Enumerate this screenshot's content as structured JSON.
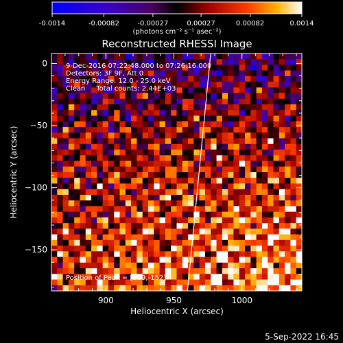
{
  "colorbar": {
    "tick_labels": [
      "-0.0014",
      "-0.00082",
      "-0.00027",
      "0.00027",
      "0.00082",
      "0.0014"
    ],
    "tick_values": [
      -0.0014,
      -0.00082,
      -0.00027,
      0.00027,
      0.00082,
      0.0014
    ],
    "min": -0.0014,
    "max": 0.0014,
    "unit_label": "(photons cm⁻² s⁻¹ asec⁻²)"
  },
  "chart_data": {
    "type": "heatmap",
    "title": "Reconstructed RHESSI Image",
    "xlabel": "Heliocentric X (arcsec)",
    "ylabel": "Heliocentric Y (arcsec)",
    "xlim": [
      860,
      1044
    ],
    "ylim": [
      -183,
      8
    ],
    "x_ticks": [
      900,
      950,
      1000
    ],
    "x_tick_labels": [
      "900",
      "950",
      "1000"
    ],
    "y_ticks": [
      0,
      -50,
      -100,
      -150
    ],
    "y_tick_labels": [
      "0",
      "−50",
      "−100",
      "−150"
    ],
    "info_lines": [
      "9-Dec-2016 07:22:48.000 to 07:26:16.000",
      "Detectors: 3F 9F, Att 0",
      "Energy Range: 12.0 - 25.0 keV",
      "Clean     Total counts: 2.44E+03"
    ],
    "peak_text": "Position of Peak = [969,-152]",
    "limb_line": {
      "x": [
        960,
        977
      ],
      "y": [
        -183,
        8
      ]
    },
    "colors": {
      "background": "#000000",
      "axes": "#ffffff",
      "limb": "#ffffff"
    }
  },
  "footer": {
    "date": "5-Sep-2022 16:45"
  }
}
